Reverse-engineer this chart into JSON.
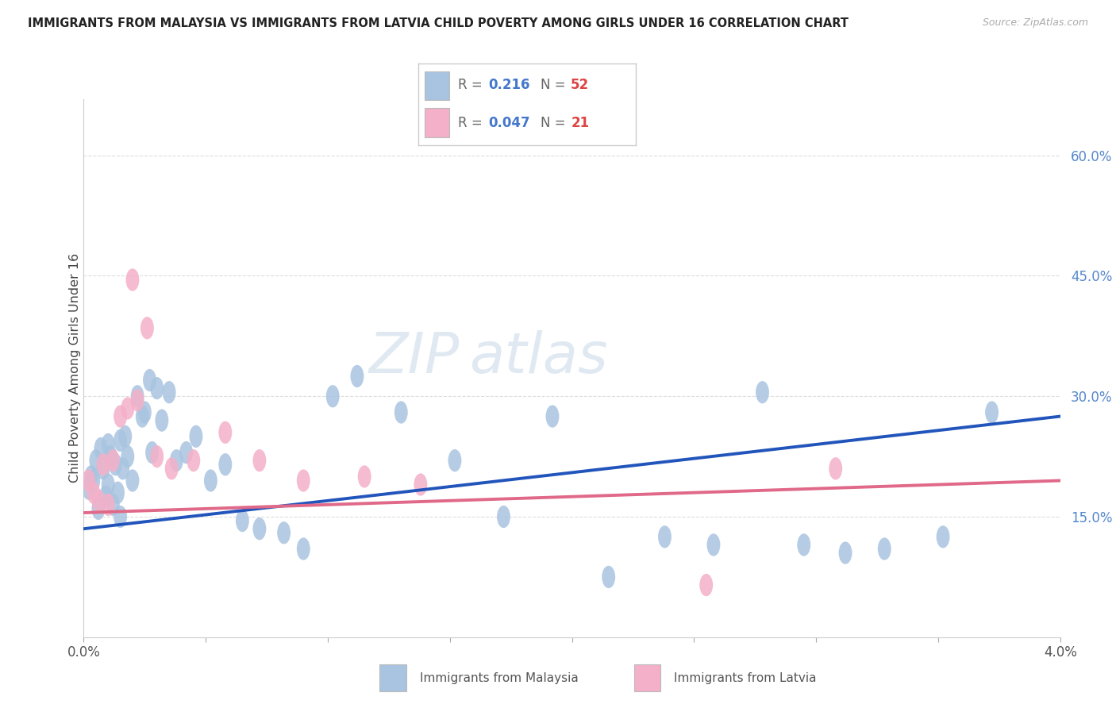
{
  "title": "IMMIGRANTS FROM MALAYSIA VS IMMIGRANTS FROM LATVIA CHILD POVERTY AMONG GIRLS UNDER 16 CORRELATION CHART",
  "source": "Source: ZipAtlas.com",
  "ylabel": "Child Poverty Among Girls Under 16",
  "x_min": 0.0,
  "x_max": 4.0,
  "y_min": 0.0,
  "y_max": 67.0,
  "y_ticks_right": [
    15.0,
    30.0,
    45.0,
    60.0
  ],
  "malaysia_R": "0.216",
  "malaysia_N": "52",
  "latvia_R": "0.047",
  "latvia_N": "21",
  "malaysia_color": "#a8c4e0",
  "latvia_color": "#f4b0c8",
  "malaysia_line_color": "#2255bb",
  "latvia_line_color": "#e06888",
  "watermark_1": "ZIP",
  "watermark_2": "atlas",
  "malaysia_x": [
    0.02,
    0.03,
    0.04,
    0.05,
    0.06,
    0.07,
    0.08,
    0.09,
    0.1,
    0.1,
    0.11,
    0.12,
    0.13,
    0.14,
    0.15,
    0.15,
    0.16,
    0.17,
    0.18,
    0.2,
    0.22,
    0.24,
    0.25,
    0.27,
    0.28,
    0.3,
    0.32,
    0.35,
    0.38,
    0.42,
    0.46,
    0.52,
    0.58,
    0.65,
    0.72,
    0.82,
    0.9,
    1.02,
    1.12,
    1.3,
    1.52,
    1.72,
    1.92,
    2.15,
    2.38,
    2.58,
    2.78,
    2.95,
    3.12,
    3.28,
    3.52,
    3.72
  ],
  "malaysia_y": [
    18.5,
    20.0,
    19.5,
    22.0,
    16.0,
    23.5,
    21.0,
    17.5,
    19.0,
    24.0,
    22.5,
    16.5,
    21.5,
    18.0,
    24.5,
    15.0,
    21.0,
    25.0,
    22.5,
    19.5,
    30.0,
    27.5,
    28.0,
    32.0,
    23.0,
    31.0,
    27.0,
    30.5,
    22.0,
    23.0,
    25.0,
    19.5,
    21.5,
    14.5,
    13.5,
    13.0,
    11.0,
    30.0,
    32.5,
    28.0,
    22.0,
    15.0,
    27.5,
    7.5,
    12.5,
    11.5,
    30.5,
    11.5,
    10.5,
    11.0,
    12.5,
    28.0
  ],
  "latvia_x": [
    0.02,
    0.04,
    0.06,
    0.08,
    0.1,
    0.12,
    0.15,
    0.18,
    0.2,
    0.22,
    0.26,
    0.3,
    0.36,
    0.45,
    0.58,
    0.72,
    0.9,
    1.15,
    1.38,
    2.55,
    3.08
  ],
  "latvia_y": [
    19.5,
    18.0,
    17.0,
    21.5,
    16.5,
    22.0,
    27.5,
    28.5,
    44.5,
    29.5,
    38.5,
    22.5,
    21.0,
    22.0,
    25.5,
    22.0,
    19.5,
    20.0,
    19.0,
    6.5,
    21.0
  ]
}
